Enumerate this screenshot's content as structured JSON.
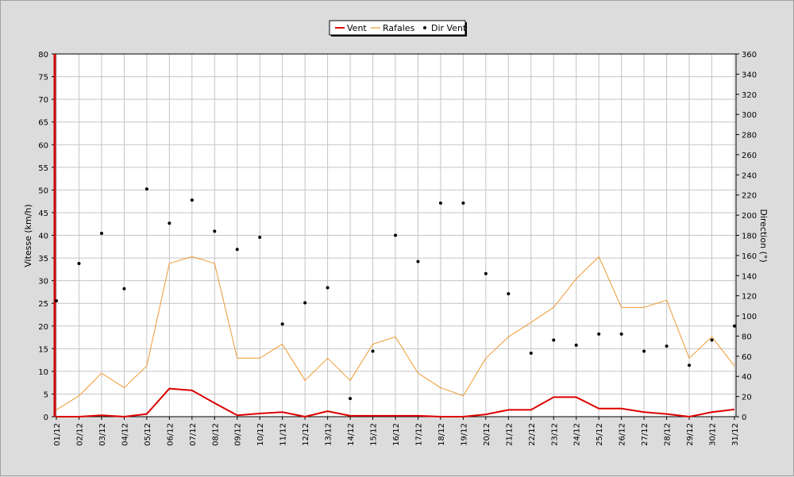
{
  "chart_data": {
    "type": "line",
    "categories": [
      "01/12",
      "02/12",
      "03/12",
      "04/12",
      "05/12",
      "06/12",
      "07/12",
      "08/12",
      "09/12",
      "10/12",
      "11/12",
      "12/12",
      "13/12",
      "14/12",
      "15/12",
      "16/12",
      "17/12",
      "18/12",
      "19/12",
      "20/12",
      "21/12",
      "22/12",
      "23/12",
      "24/12",
      "25/12",
      "26/12",
      "27/12",
      "28/12",
      "29/12",
      "30/12",
      "31/12"
    ],
    "ylabel": "Vitesse (km/h)",
    "y2label": "Direction (°)",
    "ylim": [
      0,
      80
    ],
    "y2lim": [
      0,
      360
    ],
    "yticks": [
      0,
      5,
      10,
      15,
      20,
      25,
      30,
      35,
      40,
      45,
      50,
      55,
      60,
      65,
      70,
      75,
      80
    ],
    "y2ticks": [
      0,
      20,
      40,
      60,
      80,
      100,
      120,
      140,
      160,
      180,
      200,
      220,
      240,
      260,
      280,
      300,
      320,
      340,
      360
    ],
    "grid": true,
    "legend_position": "top-center",
    "series": [
      {
        "name": "Vent",
        "type": "line",
        "axis": "left",
        "color": "#dd0000",
        "values": [
          0,
          0,
          0.3,
          0,
          0.6,
          6.2,
          5.8,
          3,
          0.3,
          0.7,
          1,
          0,
          1.2,
          0.2,
          0.2,
          0.2,
          0.2,
          0,
          0,
          0.5,
          1.5,
          1.5,
          4.3,
          4.3,
          1.8,
          1.8,
          1,
          0.6,
          0,
          1,
          1.6
        ]
      },
      {
        "name": "Rafales",
        "type": "line",
        "axis": "left",
        "color": "#ee9933",
        "values": [
          1.5,
          4.6,
          9.6,
          6.4,
          11.2,
          33.8,
          35.3,
          33.8,
          12.9,
          12.9,
          16,
          8,
          12.9,
          8,
          16,
          17.6,
          9.6,
          6.4,
          4.6,
          12.9,
          17.6,
          20.8,
          24.1,
          30.4,
          35.3,
          24.1,
          24.1,
          25.7,
          12.9,
          17.6,
          11.2
        ]
      },
      {
        "name": "Dir Vent",
        "type": "scatter",
        "axis": "right",
        "color": "#000000",
        "values": [
          115,
          152,
          182,
          127,
          226,
          192,
          215,
          184,
          166,
          178,
          92,
          113,
          128,
          18,
          65,
          180,
          154,
          212,
          212,
          142,
          122,
          63,
          76,
          71,
          82,
          82,
          65,
          70,
          51,
          76,
          90
        ]
      }
    ]
  }
}
